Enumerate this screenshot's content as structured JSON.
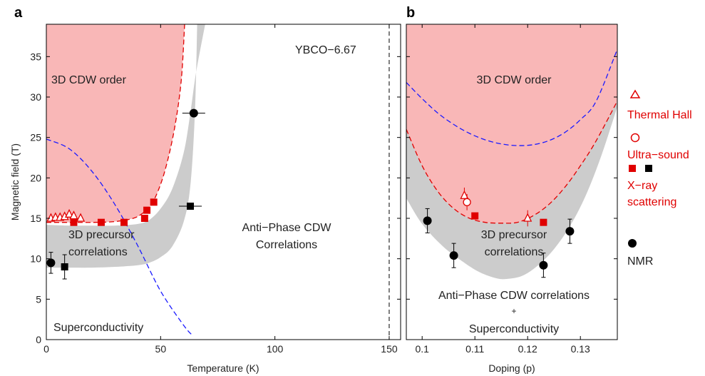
{
  "colors": {
    "cdw_fill": "#f9b7b7",
    "precursor_fill": "#cccccc",
    "red": "#e00000",
    "blue": "#1a1aff",
    "black": "#000000"
  },
  "chart_data": [
    {
      "panel": "a",
      "type": "scatter",
      "xlabel": "Temperature (K)",
      "ylabel": "Magnetic field (T)",
      "xlim": [
        0,
        155
      ],
      "ylim": [
        0,
        39
      ],
      "xticks": [
        0,
        50,
        100,
        150
      ],
      "yticks": [
        0,
        5,
        10,
        15,
        20,
        25,
        30,
        35
      ],
      "annotation": "YBCO−6.67",
      "vertical_dashed_x": 150,
      "regions": {
        "cdw": "3D CDW order",
        "precursor": [
          "3D precursor",
          "correlations"
        ],
        "anti_phase": [
          "Anti−Phase CDW",
          "Correlations"
        ],
        "sc": "Superconductivity"
      },
      "red_dashed_boundary": {
        "x": [
          0,
          10,
          20,
          30,
          38,
          42,
          45,
          48,
          52,
          56,
          59,
          60.5
        ],
        "y": [
          14.5,
          14.5,
          14.5,
          14.6,
          15.0,
          15.6,
          16.4,
          17.8,
          21,
          26,
          32,
          39
        ]
      },
      "blue_dashed_hc2": {
        "x": [
          0,
          10,
          20,
          30,
          40,
          50,
          60,
          64
        ],
        "y": [
          24.8,
          23.6,
          20.8,
          16.7,
          11.6,
          6.0,
          1.8,
          0.5
        ]
      },
      "gray_band_upper": {
        "x": [
          0,
          10,
          20,
          30,
          40,
          45,
          50,
          55,
          60,
          63,
          65.5,
          69.5
        ],
        "y": [
          14.2,
          14.1,
          14.1,
          14.1,
          14.3,
          14.8,
          16.2,
          18.6,
          23,
          28,
          33,
          39
        ]
      },
      "gray_band_lower": {
        "x": [
          0,
          10,
          20,
          30,
          40,
          45,
          50,
          55,
          60,
          63,
          65,
          66
        ],
        "y": [
          8.9,
          8.9,
          8.9,
          9.0,
          9.2,
          9.5,
          10.2,
          11.5,
          14.5,
          19,
          28,
          39
        ]
      },
      "thermal_hall": {
        "x": [
          2,
          4,
          6,
          8,
          10,
          12,
          15
        ],
        "y": [
          15.0,
          15.1,
          15.1,
          15.2,
          15.5,
          15.3,
          15.0
        ]
      },
      "xray_red": {
        "x": [
          12,
          24,
          34,
          43,
          44,
          47
        ],
        "y": [
          14.5,
          14.5,
          14.5,
          15.0,
          16.0,
          17.0
        ]
      },
      "xray_black": {
        "x": [
          8,
          63
        ],
        "y": [
          9.0,
          16.5
        ],
        "yerr": [
          1.5,
          0.3
        ],
        "xerr": [
          0,
          5
        ]
      },
      "nmr": {
        "x": [
          2,
          64.5
        ],
        "y": [
          9.5,
          28.0
        ],
        "yerr": [
          1.3,
          0.3
        ],
        "xerr": [
          0,
          5
        ]
      }
    },
    {
      "panel": "b",
      "type": "scatter",
      "xlabel": "Doping (p)",
      "xlim": [
        0.097,
        0.137
      ],
      "ylim": [
        0,
        39
      ],
      "xticks": [
        0.1,
        0.11,
        0.12,
        0.13
      ],
      "yticks": [
        0,
        5,
        10,
        15,
        20,
        25,
        30,
        35
      ],
      "regions": {
        "cdw": "3D CDW order",
        "precursor": [
          "3D precursor",
          "correlations"
        ],
        "bottom": [
          "Anti−Phase CDW correlations",
          "+",
          "Superconductivity"
        ]
      },
      "red_dashed": {
        "x": [
          0.097,
          0.1,
          0.103,
          0.106,
          0.109,
          0.112,
          0.115,
          0.118,
          0.121,
          0.124,
          0.127,
          0.13,
          0.133,
          0.137
        ],
        "y": [
          26,
          21.5,
          18.3,
          16.2,
          15.0,
          14.5,
          14.4,
          14.5,
          15.3,
          16.7,
          18.8,
          21.5,
          24.6,
          29.5
        ]
      },
      "blue_dashed": {
        "x": [
          0.097,
          0.1,
          0.103,
          0.106,
          0.109,
          0.112,
          0.115,
          0.118,
          0.121,
          0.124,
          0.127,
          0.13,
          0.133,
          0.137
        ],
        "y": [
          31.8,
          29.8,
          28.0,
          26.6,
          25.5,
          24.7,
          24.2,
          24.0,
          24.1,
          24.6,
          25.6,
          27.2,
          29.5,
          35.9
        ]
      },
      "gray_band_lower": {
        "x": [
          0.097,
          0.1,
          0.104,
          0.108,
          0.111,
          0.114,
          0.116,
          0.119,
          0.122,
          0.125,
          0.128,
          0.131,
          0.134,
          0.137
        ],
        "y": [
          17.5,
          14.3,
          11.5,
          9.5,
          8.3,
          7.6,
          7.5,
          7.9,
          9.2,
          11.2,
          14.0,
          17.8,
          22.8,
          28.8
        ]
      },
      "thermal_hall": {
        "x": [
          0.108,
          0.12
        ],
        "y": [
          17.8,
          15.0
        ],
        "yerr": [
          1.0,
          1.0
        ]
      },
      "ultrasound": {
        "x": [
          0.1085
        ],
        "y": [
          17.0
        ],
        "yerr": [
          1.0
        ]
      },
      "xray_red": {
        "x": [
          0.11,
          0.123
        ],
        "y": [
          15.3,
          14.5
        ]
      },
      "nmr": {
        "x": [
          0.101,
          0.106,
          0.123,
          0.128
        ],
        "y": [
          14.7,
          10.4,
          9.2,
          13.4
        ],
        "yerr": [
          1.5,
          1.5,
          1.5,
          1.5
        ]
      }
    }
  ],
  "legend": {
    "thermal_hall": "Thermal Hall",
    "ultrasound": "Ultra−sound",
    "xray": [
      "X−ray",
      "scattering"
    ],
    "nmr": "NMR"
  }
}
